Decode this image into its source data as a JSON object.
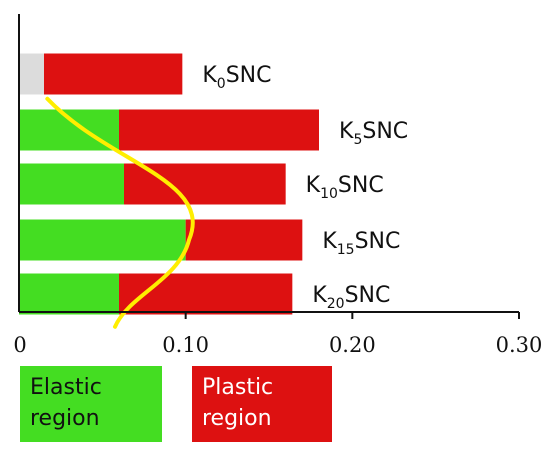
{
  "chart_data": {
    "type": "bar",
    "orientation": "horizontal",
    "stacked": true,
    "categories": [
      {
        "base": "K",
        "sub": "0",
        "suffix": "SNC"
      },
      {
        "base": "K",
        "sub": "5",
        "suffix": "SNC"
      },
      {
        "base": "K",
        "sub": "10",
        "suffix": "SNC"
      },
      {
        "base": "K",
        "sub": "15",
        "suffix": "SNC"
      },
      {
        "base": "K",
        "sub": "20",
        "suffix": "SNC"
      }
    ],
    "series": [
      {
        "name": "Elastic region",
        "values": [
          0.015,
          0.06,
          0.063,
          0.1,
          0.06
        ],
        "color": "#44dd22"
      },
      {
        "name": "Plastic region",
        "values": [
          0.083,
          0.12,
          0.097,
          0.07,
          0.104
        ],
        "color": "#dd1111"
      }
    ],
    "series_colors_override": [
      [
        "#dcdcdc",
        null,
        null,
        null,
        null
      ]
    ],
    "elastic_limit_curve": {
      "color": "#ffee00",
      "points": [
        [
          0.017,
          0.8
        ],
        [
          0.06,
          1.8
        ],
        [
          0.102,
          3.0
        ],
        [
          0.06,
          4.2
        ]
      ]
    },
    "xlim": [
      0,
      0.3
    ],
    "xticks": [
      "0",
      "0.10",
      "0.20",
      "0.30"
    ],
    "xticks_values": [
      0,
      0.1,
      0.2,
      0.3
    ],
    "grid": false,
    "title": "",
    "xlabel": "",
    "ylabel": ""
  },
  "legend": {
    "elastic": {
      "label": "Elastic\nregion",
      "color": "#44dd22"
    },
    "plastic": {
      "label": "Plastic\nregion",
      "color": "#dd1111"
    }
  }
}
